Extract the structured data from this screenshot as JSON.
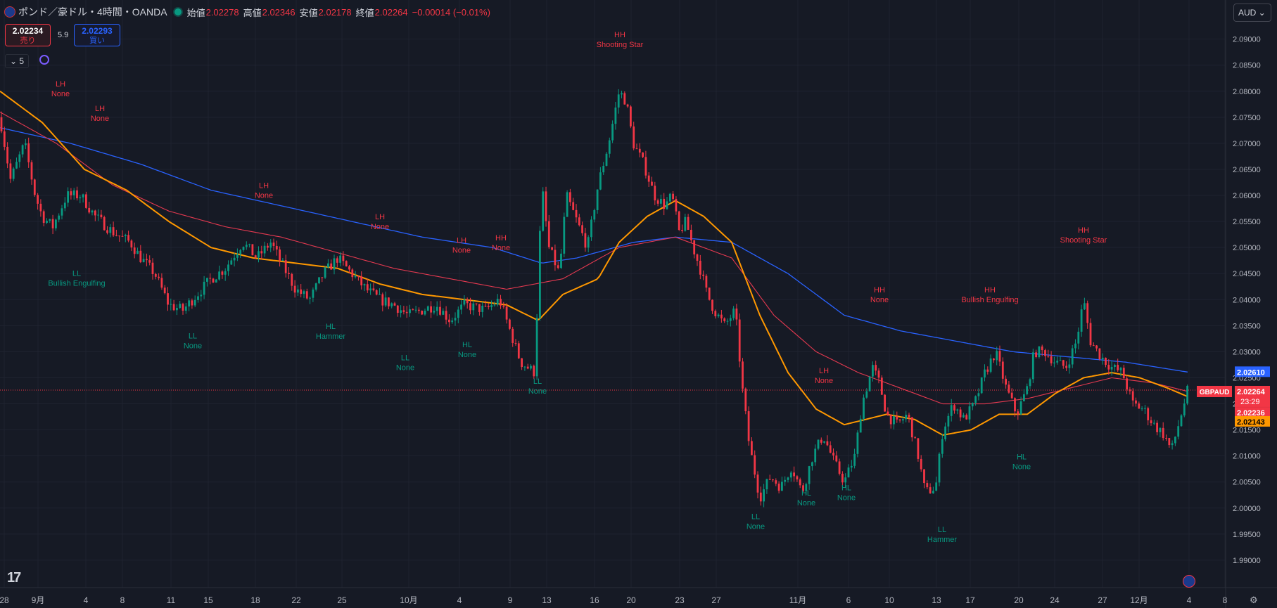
{
  "header": {
    "title": "ポンド／豪ドル・4時間・OANDA",
    "open_label": "始値",
    "open": "2.02278",
    "high_label": "高値",
    "high": "2.02346",
    "low_label": "安値",
    "low": "2.02178",
    "close_label": "終値",
    "close": "2.02264",
    "change": "−0.00014 (−0.01%)"
  },
  "trade": {
    "sell_price": "2.02234",
    "sell_label": "売り",
    "spread": "5.9",
    "buy_price": "2.02293",
    "buy_label": "買い"
  },
  "indicator_toggle": "5",
  "currency_select": "AUD",
  "colors": {
    "background": "#161a25",
    "up": "#089981",
    "down": "#f23645",
    "ma_fast": "#ff9800",
    "ma_mid": "#e53950",
    "ma_slow": "#2962ff",
    "grid": "#1f2330"
  },
  "chart_data": {
    "type": "candlestick",
    "symbol": "GBPAUD",
    "ylim": [
      1.985,
      2.094
    ],
    "y_ticks": [
      "1.99000",
      "1.99500",
      "2.00000",
      "2.00500",
      "2.01000",
      "2.01500",
      "2.02000",
      "2.02500",
      "2.03000",
      "2.03500",
      "2.04000",
      "2.04500",
      "2.05000",
      "2.05500",
      "2.06000",
      "2.06500",
      "2.07000",
      "2.07500",
      "2.08000",
      "2.08500",
      "2.09000"
    ],
    "x_ticks": [
      "28",
      "9月",
      "4",
      "8",
      "11",
      "15",
      "18",
      "22",
      "25",
      "10月",
      "4",
      "9",
      "13",
      "16",
      "20",
      "23",
      "27",
      "11月",
      "6",
      "10",
      "13",
      "17",
      "20",
      "24",
      "27",
      "12月",
      "4",
      "8"
    ],
    "price_labels": [
      {
        "value": 2.0261,
        "text": "2.02610",
        "color": "#2962ff"
      },
      {
        "value": 2.02264,
        "text": "2.02264",
        "sub": "23:29",
        "color": "#f23645",
        "tag": "GBPAUD"
      },
      {
        "value": 2.02236,
        "text": "2.02236",
        "color": "#f23645"
      },
      {
        "value": 2.02143,
        "text": "2.02143",
        "color": "#ff9800"
      }
    ],
    "close_anchors": [
      [
        0,
        2.075
      ],
      [
        15,
        2.063
      ],
      [
        35,
        2.07
      ],
      [
        50,
        2.06
      ],
      [
        60,
        2.056
      ],
      [
        75,
        2.054
      ],
      [
        95,
        2.06
      ],
      [
        115,
        2.06
      ],
      [
        135,
        2.056
      ],
      [
        160,
        2.053
      ],
      [
        185,
        2.051
      ],
      [
        200,
        2.048
      ],
      [
        220,
        2.045
      ],
      [
        240,
        2.039
      ],
      [
        260,
        2.038
      ],
      [
        280,
        2.041
      ],
      [
        300,
        2.044
      ],
      [
        320,
        2.046
      ],
      [
        345,
        2.051
      ],
      [
        365,
        2.048
      ],
      [
        385,
        2.051
      ],
      [
        400,
        2.047
      ],
      [
        420,
        2.042
      ],
      [
        440,
        2.04
      ],
      [
        460,
        2.045
      ],
      [
        480,
        2.048
      ],
      [
        500,
        2.045
      ],
      [
        520,
        2.042
      ],
      [
        540,
        2.04
      ],
      [
        560,
        2.039
      ],
      [
        580,
        2.037
      ],
      [
        600,
        2.038
      ],
      [
        620,
        2.039
      ],
      [
        640,
        2.036
      ],
      [
        660,
        2.039
      ],
      [
        690,
        2.038
      ],
      [
        710,
        2.04
      ],
      [
        740,
        2.028
      ],
      [
        760,
        2.026
      ],
      [
        770,
        2.062
      ],
      [
        780,
        2.05
      ],
      [
        795,
        2.045
      ],
      [
        805,
        2.06
      ],
      [
        820,
        2.055
      ],
      [
        835,
        2.05
      ],
      [
        850,
        2.062
      ],
      [
        865,
        2.07
      ],
      [
        880,
        2.08
      ],
      [
        890,
        2.078
      ],
      [
        900,
        2.07
      ],
      [
        915,
        2.066
      ],
      [
        930,
        2.06
      ],
      [
        945,
        2.058
      ],
      [
        955,
        2.06
      ],
      [
        965,
        2.053
      ],
      [
        975,
        2.055
      ],
      [
        985,
        2.05
      ],
      [
        995,
        2.046
      ],
      [
        1005,
        2.041
      ],
      [
        1015,
        2.038
      ],
      [
        1030,
        2.035
      ],
      [
        1045,
        2.038
      ],
      [
        1055,
        2.023
      ],
      [
        1065,
        2.012
      ],
      [
        1080,
        2.002
      ],
      [
        1095,
        2.006
      ],
      [
        1110,
        2.004
      ],
      [
        1125,
        2.008
      ],
      [
        1140,
        2.003
      ],
      [
        1155,
        2.01
      ],
      [
        1170,
        2.014
      ],
      [
        1185,
        2.009
      ],
      [
        1200,
        2.005
      ],
      [
        1215,
        2.01
      ],
      [
        1225,
        2.02
      ],
      [
        1240,
        2.027
      ],
      [
        1250,
        2.024
      ],
      [
        1260,
        2.018
      ],
      [
        1275,
        2.016
      ],
      [
        1290,
        2.018
      ],
      [
        1305,
        2.01
      ],
      [
        1315,
        2.003
      ],
      [
        1330,
        2.004
      ],
      [
        1340,
        2.015
      ],
      [
        1355,
        2.02
      ],
      [
        1370,
        2.017
      ],
      [
        1385,
        2.02
      ],
      [
        1400,
        2.026
      ],
      [
        1415,
        2.03
      ],
      [
        1430,
        2.023
      ],
      [
        1445,
        2.018
      ],
      [
        1460,
        2.023
      ],
      [
        1470,
        2.03
      ],
      [
        1485,
        2.03
      ],
      [
        1500,
        2.028
      ],
      [
        1515,
        2.027
      ],
      [
        1530,
        2.032
      ],
      [
        1540,
        2.04
      ],
      [
        1550,
        2.032
      ],
      [
        1565,
        2.029
      ],
      [
        1580,
        2.027
      ],
      [
        1595,
        2.026
      ],
      [
        1610,
        2.02
      ],
      [
        1625,
        2.019
      ],
      [
        1640,
        2.016
      ],
      [
        1655,
        2.014
      ],
      [
        1665,
        2.011
      ],
      [
        1675,
        2.016
      ],
      [
        1688,
        2.0226
      ]
    ],
    "ma_fast_anchors": [
      [
        0,
        2.08
      ],
      [
        60,
        2.074
      ],
      [
        120,
        2.065
      ],
      [
        180,
        2.061
      ],
      [
        240,
        2.055
      ],
      [
        300,
        2.05
      ],
      [
        360,
        2.048
      ],
      [
        420,
        2.047
      ],
      [
        480,
        2.046
      ],
      [
        540,
        2.043
      ],
      [
        600,
        2.041
      ],
      [
        660,
        2.04
      ],
      [
        720,
        2.039
      ],
      [
        765,
        2.036
      ],
      [
        800,
        2.041
      ],
      [
        850,
        2.044
      ],
      [
        880,
        2.051
      ],
      [
        920,
        2.056
      ],
      [
        960,
        2.059
      ],
      [
        1000,
        2.056
      ],
      [
        1040,
        2.051
      ],
      [
        1080,
        2.037
      ],
      [
        1120,
        2.026
      ],
      [
        1160,
        2.019
      ],
      [
        1200,
        2.016
      ],
      [
        1230,
        2.017
      ],
      [
        1260,
        2.018
      ],
      [
        1300,
        2.017
      ],
      [
        1340,
        2.014
      ],
      [
        1380,
        2.015
      ],
      [
        1420,
        2.018
      ],
      [
        1460,
        2.018
      ],
      [
        1500,
        2.022
      ],
      [
        1540,
        2.025
      ],
      [
        1580,
        2.026
      ],
      [
        1620,
        2.025
      ],
      [
        1660,
        2.023
      ],
      [
        1688,
        2.0214
      ]
    ],
    "ma_mid_anchors": [
      [
        0,
        2.076
      ],
      [
        80,
        2.07
      ],
      [
        160,
        2.062
      ],
      [
        240,
        2.057
      ],
      [
        320,
        2.054
      ],
      [
        400,
        2.052
      ],
      [
        480,
        2.049
      ],
      [
        560,
        2.046
      ],
      [
        640,
        2.044
      ],
      [
        720,
        2.042
      ],
      [
        800,
        2.044
      ],
      [
        880,
        2.05
      ],
      [
        960,
        2.052
      ],
      [
        1040,
        2.048
      ],
      [
        1100,
        2.037
      ],
      [
        1160,
        2.03
      ],
      [
        1220,
        2.026
      ],
      [
        1280,
        2.023
      ],
      [
        1340,
        2.02
      ],
      [
        1400,
        2.02
      ],
      [
        1460,
        2.021
      ],
      [
        1520,
        2.023
      ],
      [
        1580,
        2.025
      ],
      [
        1640,
        2.024
      ],
      [
        1688,
        2.0224
      ]
    ],
    "ma_slow_anchors": [
      [
        0,
        2.073
      ],
      [
        100,
        2.07
      ],
      [
        200,
        2.066
      ],
      [
        300,
        2.061
      ],
      [
        400,
        2.058
      ],
      [
        500,
        2.055
      ],
      [
        600,
        2.052
      ],
      [
        700,
        2.05
      ],
      [
        770,
        2.047
      ],
      [
        820,
        2.048
      ],
      [
        900,
        2.051
      ],
      [
        960,
        2.052
      ],
      [
        1040,
        2.051
      ],
      [
        1120,
        2.045
      ],
      [
        1200,
        2.037
      ],
      [
        1280,
        2.034
      ],
      [
        1360,
        2.032
      ],
      [
        1440,
        2.03
      ],
      [
        1520,
        2.029
      ],
      [
        1600,
        2.028
      ],
      [
        1688,
        2.0261
      ]
    ],
    "annotations": [
      {
        "x": 86,
        "value": 2.079,
        "side": "high",
        "kind": "LH",
        "pattern": "None"
      },
      {
        "x": 142,
        "value": 2.0743,
        "side": "high",
        "kind": "LH",
        "pattern": "None"
      },
      {
        "x": 109,
        "value": 2.0462,
        "side": "low",
        "kind": "LL",
        "pattern": "Bullish Engulfing"
      },
      {
        "x": 274,
        "value": 2.0342,
        "side": "low",
        "kind": "LL",
        "pattern": "None"
      },
      {
        "x": 375,
        "value": 2.0595,
        "side": "high",
        "kind": "LH",
        "pattern": "None"
      },
      {
        "x": 470,
        "value": 2.036,
        "side": "low",
        "kind": "HL",
        "pattern": "Hammer"
      },
      {
        "x": 540,
        "value": 2.0535,
        "side": "high",
        "kind": "LH",
        "pattern": "None"
      },
      {
        "x": 576,
        "value": 2.03,
        "side": "low",
        "kind": "LL",
        "pattern": "None"
      },
      {
        "x": 656,
        "value": 2.049,
        "side": "high",
        "kind": "LH",
        "pattern": "None"
      },
      {
        "x": 712,
        "value": 2.0495,
        "side": "high",
        "kind": "HH",
        "pattern": "None"
      },
      {
        "x": 664,
        "value": 2.0325,
        "side": "low",
        "kind": "HL",
        "pattern": "None"
      },
      {
        "x": 764,
        "value": 2.0255,
        "side": "low",
        "kind": "LL",
        "pattern": "None"
      },
      {
        "x": 881,
        "value": 2.0885,
        "side": "high",
        "kind": "HH",
        "pattern": "Shooting Star"
      },
      {
        "x": 1074,
        "value": 1.9995,
        "side": "low",
        "kind": "LL",
        "pattern": "None"
      },
      {
        "x": 1146,
        "value": 2.004,
        "side": "low",
        "kind": "HL",
        "pattern": "None"
      },
      {
        "x": 1203,
        "value": 2.005,
        "side": "low",
        "kind": "HL",
        "pattern": "None"
      },
      {
        "x": 1171,
        "value": 2.024,
        "side": "high",
        "kind": "LH",
        "pattern": "None"
      },
      {
        "x": 1250,
        "value": 2.0395,
        "side": "high",
        "kind": "HH",
        "pattern": "None"
      },
      {
        "x": 1339,
        "value": 1.997,
        "side": "low",
        "kind": "LL",
        "pattern": "Hammer"
      },
      {
        "x": 1407,
        "value": 2.0395,
        "side": "high",
        "kind": "HH",
        "pattern": "Bullish Engulfing"
      },
      {
        "x": 1452,
        "value": 2.011,
        "side": "low",
        "kind": "HL",
        "pattern": "None"
      },
      {
        "x": 1540,
        "value": 2.051,
        "side": "high",
        "kind": "HH",
        "pattern": "Shooting Star"
      }
    ]
  }
}
